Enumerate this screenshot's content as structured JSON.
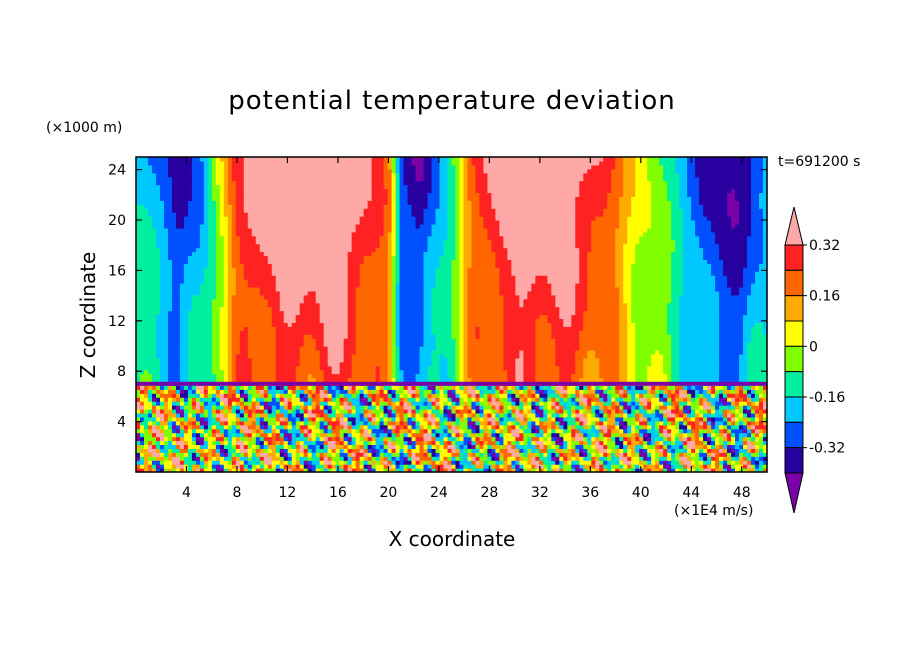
{
  "chart_data": {
    "type": "heatmap",
    "title": "potential temperature deviation",
    "xlabel": "X coordinate",
    "ylabel": "Z coordinate",
    "x_unit": "(×1E4 m/s)",
    "y_unit": "(×1000 m)",
    "time_label": "t=691200 s",
    "xlim": [
      0,
      50
    ],
    "ylim": [
      0,
      25
    ],
    "x_ticks": [
      "4",
      "8",
      "12",
      "16",
      "20",
      "24",
      "28",
      "32",
      "36",
      "40",
      "44",
      "48"
    ],
    "x_tick_values": [
      4,
      8,
      12,
      16,
      20,
      24,
      28,
      32,
      36,
      40,
      44,
      48
    ],
    "y_ticks": [
      "4",
      "8",
      "12",
      "16",
      "20",
      "24"
    ],
    "y_tick_values": [
      4,
      8,
      12,
      16,
      20,
      24
    ],
    "colorbar": {
      "labels": [
        "0.32",
        "0.16",
        "0",
        "-0.16",
        "-0.32"
      ],
      "label_values": [
        0.32,
        0.16,
        0,
        -0.16,
        -0.32
      ],
      "levels": [
        -0.4,
        -0.32,
        -0.24,
        -0.16,
        -0.08,
        0,
        0.08,
        0.16,
        0.24,
        0.32,
        0.4
      ],
      "colors": [
        "#7a00a8",
        "#2800a0",
        "#0050ff",
        "#00c8ff",
        "#00f0a0",
        "#80ff00",
        "#ffff00",
        "#ffaa00",
        "#ff6600",
        "#ff2222",
        "#ffa8a8"
      ],
      "extend": "both"
    },
    "upper_layer_profile": [
      {
        "x": 0,
        "v": -0.2
      },
      {
        "x": 2,
        "v": -0.24
      },
      {
        "x": 3.5,
        "v": -0.36
      },
      {
        "x": 5,
        "v": -0.3
      },
      {
        "x": 6.5,
        "v": 0.0
      },
      {
        "x": 8,
        "v": 0.26
      },
      {
        "x": 10,
        "v": 0.42
      },
      {
        "x": 14,
        "v": 0.45
      },
      {
        "x": 17,
        "v": 0.45
      },
      {
        "x": 20,
        "v": 0.2
      },
      {
        "x": 21,
        "v": -0.3
      },
      {
        "x": 22.5,
        "v": -0.42
      },
      {
        "x": 23.5,
        "v": -0.3
      },
      {
        "x": 25,
        "v": -0.1
      },
      {
        "x": 26.5,
        "v": 0.2
      },
      {
        "x": 29,
        "v": 0.42
      },
      {
        "x": 33,
        "v": 0.45
      },
      {
        "x": 37,
        "v": 0.3
      },
      {
        "x": 39,
        "v": 0.1
      },
      {
        "x": 41,
        "v": -0.05
      },
      {
        "x": 43,
        "v": -0.15
      },
      {
        "x": 45,
        "v": -0.36
      },
      {
        "x": 48,
        "v": -0.42
      },
      {
        "x": 50,
        "v": -0.25
      }
    ],
    "inversion_height": 7,
    "lower_layer": "turbulent mixed field, values between -0.4 and 0.4"
  }
}
